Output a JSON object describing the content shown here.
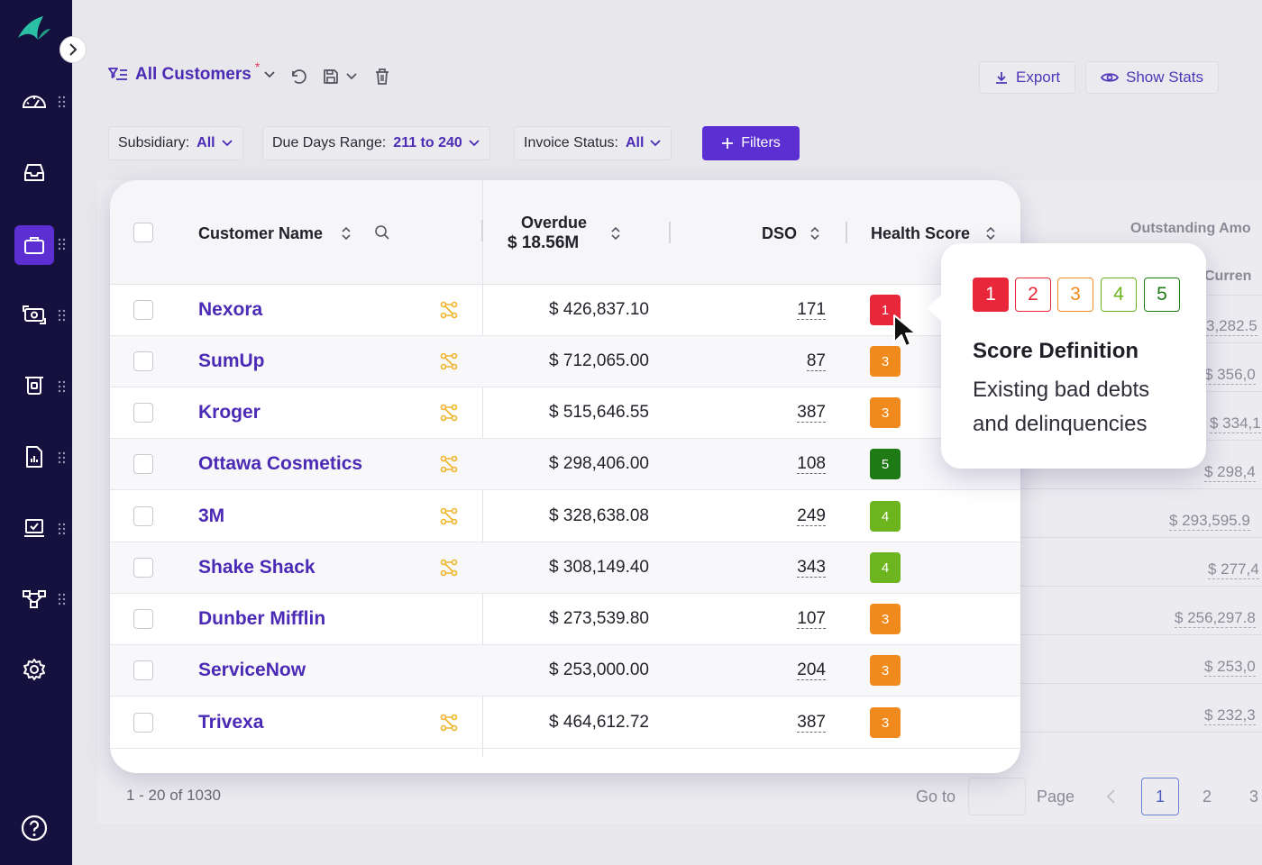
{
  "toolbar": {
    "view_name": "All Customers",
    "unsaved_marker": "*",
    "export_label": "Export",
    "show_stats_label": "Show Stats"
  },
  "filters": {
    "subsidiary_label": "Subsidiary:",
    "subsidiary_value": "All",
    "due_days_label": "Due Days Range:",
    "due_days_value": "211 to 240",
    "invoice_status_label": "Invoice Status:",
    "invoice_status_value": "All",
    "filters_button": "Filters"
  },
  "table": {
    "col_customer": "Customer Name",
    "col_overdue": "Overdue",
    "overdue_total": "$ 18.56M",
    "col_dso": "DSO",
    "col_health": "Health Score",
    "col_outstanding": "Outstanding Amo",
    "col_current": "Curren",
    "rows": [
      {
        "name": "Nexora",
        "amount": "$ 426,837.10",
        "dso": "171",
        "score": "1",
        "linked": true,
        "outstanding": "3,282.5"
      },
      {
        "name": "SumUp",
        "amount": "$ 712,065.00",
        "dso": "87",
        "score": "3",
        "linked": true,
        "outstanding": "$ 356,0"
      },
      {
        "name": "Kroger",
        "amount": "$ 515,646.55",
        "dso": "387",
        "score": "3",
        "linked": true,
        "outstanding": "$ 334,1"
      },
      {
        "name": "Ottawa Cosmetics",
        "amount": "$ 298,406.00",
        "dso": "108",
        "score": "5",
        "linked": true,
        "outstanding": "$ 298,4"
      },
      {
        "name": "3M",
        "amount": "$ 328,638.08",
        "dso": "249",
        "score": "4",
        "linked": true,
        "outstanding": "$ 293,595.9"
      },
      {
        "name": "Shake Shack",
        "amount": "$ 308,149.40",
        "dso": "343",
        "score": "4",
        "linked": true,
        "outstanding": "$ 277,4"
      },
      {
        "name": "Dunber Mifflin",
        "amount": "$ 273,539.80",
        "dso": "107",
        "score": "3",
        "linked": false,
        "outstanding": "$ 256,297.8"
      },
      {
        "name": "ServiceNow",
        "amount": "$ 253,000.00",
        "dso": "204",
        "score": "3",
        "linked": false,
        "outstanding": "$ 253,0"
      },
      {
        "name": "Trivexa",
        "amount": "$ 464,612.72",
        "dso": "387",
        "score": "3",
        "linked": true,
        "outstanding": "$ 232,3"
      }
    ]
  },
  "score_colors": {
    "1": "#e8283a",
    "2": "#e8283a",
    "3": "#f08a1c",
    "4": "#6cb51e",
    "5": "#1e7a14"
  },
  "tooltip": {
    "levels": [
      "1",
      "2",
      "3",
      "4",
      "5"
    ],
    "title": "Score Definition",
    "body": "Existing bad debts and delinquencies"
  },
  "pagination": {
    "range_text": "1 - 20 of 1030",
    "goto_label": "Go to",
    "page_label": "Page",
    "pages": [
      "1",
      "2",
      "3"
    ],
    "current_page": "1"
  },
  "sidebar": {
    "items": [
      "dashboard-icon",
      "inbox-icon",
      "briefcase-icon",
      "payments-icon",
      "cash-icon",
      "report-icon",
      "tasks-icon",
      "workflow-icon",
      "settings-icon"
    ],
    "active": "briefcase-icon"
  }
}
